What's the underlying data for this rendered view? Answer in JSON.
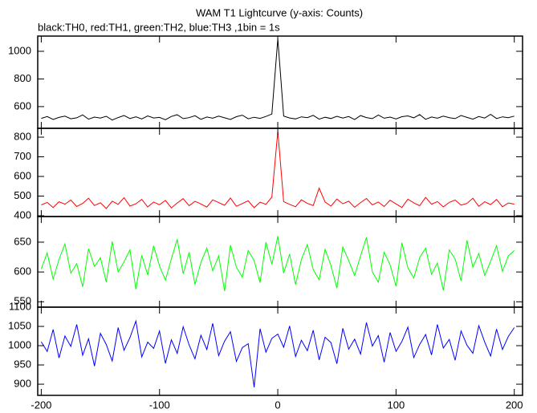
{
  "chart_data": [
    {
      "type": "line",
      "title": "WAM T1 Lightcurve (y-axis: Counts)",
      "subtitle": "black:TH0, red:TH1, green:TH2, blue:TH3 ,1bin = 1s",
      "color": "#000000",
      "x": [
        -200,
        -195,
        -190,
        -185,
        -180,
        -175,
        -170,
        -165,
        -160,
        -155,
        -150,
        -145,
        -140,
        -135,
        -130,
        -125,
        -120,
        -115,
        -110,
        -105,
        -100,
        -95,
        -90,
        -85,
        -80,
        -75,
        -70,
        -65,
        -60,
        -55,
        -50,
        -45,
        -40,
        -35,
        -30,
        -25,
        -20,
        -15,
        -10,
        -5,
        0,
        5,
        10,
        15,
        20,
        25,
        30,
        35,
        40,
        45,
        50,
        55,
        60,
        65,
        70,
        75,
        80,
        85,
        90,
        95,
        100,
        105,
        110,
        115,
        120,
        125,
        130,
        135,
        140,
        145,
        150,
        155,
        160,
        165,
        170,
        175,
        180,
        185,
        190,
        195,
        200
      ],
      "values": [
        515,
        528,
        507,
        522,
        531,
        512,
        519,
        540,
        509,
        524,
        517,
        530,
        503,
        521,
        536,
        514,
        526,
        511,
        533,
        518,
        522,
        505,
        529,
        541,
        513,
        520,
        534,
        508,
        525,
        516,
        531,
        519,
        507,
        527,
        538,
        512,
        523,
        515,
        529,
        546,
        1090,
        532,
        518,
        511,
        526,
        520,
        537,
        509,
        523,
        514,
        530,
        517,
        528,
        506,
        535,
        521,
        513,
        539,
        516,
        524,
        510,
        527,
        533,
        519,
        542,
        508,
        525,
        516,
        531,
        520,
        513,
        536,
        522,
        509,
        528,
        517,
        544,
        514,
        526,
        520,
        531
      ],
      "xlim": [
        -203,
        207
      ],
      "xticks": [
        -200,
        -100,
        0,
        100,
        200
      ],
      "ylim": [
        443,
        1110
      ],
      "yticks": [
        600,
        800,
        1000
      ]
    },
    {
      "type": "line",
      "color": "#ff0000",
      "x": [
        -200,
        -195,
        -190,
        -185,
        -180,
        -175,
        -170,
        -165,
        -160,
        -155,
        -150,
        -145,
        -140,
        -135,
        -130,
        -125,
        -120,
        -115,
        -110,
        -105,
        -100,
        -95,
        -90,
        -85,
        -80,
        -75,
        -70,
        -65,
        -60,
        -55,
        -50,
        -45,
        -40,
        -35,
        -30,
        -25,
        -20,
        -15,
        -10,
        -5,
        0,
        5,
        10,
        15,
        20,
        25,
        30,
        35,
        40,
        45,
        50,
        55,
        60,
        65,
        70,
        75,
        80,
        85,
        90,
        95,
        100,
        105,
        110,
        115,
        120,
        125,
        130,
        135,
        140,
        145,
        150,
        155,
        160,
        165,
        170,
        175,
        180,
        185,
        190,
        195,
        200
      ],
      "values": [
        455,
        468,
        442,
        471,
        459,
        480,
        447,
        463,
        489,
        452,
        466,
        437,
        474,
        458,
        492,
        449,
        461,
        483,
        445,
        470,
        456,
        478,
        440,
        465,
        487,
        451,
        473,
        460,
        444,
        481,
        467,
        453,
        490,
        448,
        462,
        476,
        441,
        469,
        458,
        495,
        830,
        472,
        458,
        446,
        481,
        463,
        452,
        540,
        470,
        449,
        485,
        461,
        474,
        443,
        467,
        488,
        455,
        470,
        447,
        479,
        460,
        442,
        484,
        466,
        451,
        493,
        459,
        472,
        445,
        468,
        480,
        454,
        463,
        489,
        448,
        471,
        457,
        483,
        446,
        465,
        459
      ],
      "xlim": [
        -203,
        207
      ],
      "xticks": [
        -200,
        -100,
        0,
        100,
        200
      ],
      "ylim": [
        396,
        845
      ],
      "yticks": [
        400,
        500,
        600,
        700,
        800
      ]
    },
    {
      "type": "line",
      "color": "#00ff00",
      "x": [
        -200,
        -195,
        -190,
        -185,
        -180,
        -175,
        -170,
        -165,
        -160,
        -155,
        -150,
        -145,
        -140,
        -135,
        -130,
        -125,
        -120,
        -115,
        -110,
        -105,
        -100,
        -95,
        -90,
        -85,
        -80,
        -75,
        -70,
        -65,
        -60,
        -55,
        -50,
        -45,
        -40,
        -35,
        -30,
        -25,
        -20,
        -15,
        -10,
        -5,
        0,
        5,
        10,
        15,
        20,
        25,
        30,
        35,
        40,
        45,
        50,
        55,
        60,
        65,
        70,
        75,
        80,
        85,
        90,
        95,
        100,
        105,
        110,
        115,
        120,
        125,
        130,
        135,
        140,
        145,
        150,
        155,
        160,
        165,
        170,
        175,
        180,
        185,
        190,
        195,
        200
      ],
      "values": [
        605,
        632,
        588,
        621,
        647,
        598,
        614,
        575,
        639,
        609,
        624,
        583,
        651,
        600,
        617,
        637,
        571,
        628,
        595,
        644,
        610,
        586,
        622,
        655,
        597,
        633,
        579,
        616,
        640,
        602,
        627,
        568,
        645,
        608,
        591,
        636,
        619,
        582,
        650,
        613,
        660,
        598,
        630,
        579,
        621,
        646,
        604,
        587,
        638,
        611,
        573,
        642,
        619,
        594,
        627,
        658,
        600,
        583,
        633,
        612,
        576,
        649,
        607,
        590,
        624,
        640,
        596,
        615,
        569,
        637,
        622,
        585,
        653,
        608,
        631,
        594,
        618,
        644,
        601,
        627,
        636
      ],
      "xlim": [
        -203,
        207
      ],
      "xticks": [
        -200,
        -100,
        0,
        100,
        200
      ],
      "ylim": [
        541,
        693
      ],
      "yticks": [
        550,
        600,
        650
      ]
    },
    {
      "type": "line",
      "color": "#0000ff",
      "x": [
        -200,
        -195,
        -190,
        -185,
        -180,
        -175,
        -170,
        -165,
        -160,
        -155,
        -150,
        -145,
        -140,
        -135,
        -130,
        -125,
        -120,
        -115,
        -110,
        -105,
        -100,
        -95,
        -90,
        -85,
        -80,
        -75,
        -70,
        -65,
        -60,
        -55,
        -50,
        -45,
        -40,
        -35,
        -30,
        -25,
        -20,
        -15,
        -10,
        -5,
        0,
        5,
        10,
        15,
        20,
        25,
        30,
        35,
        40,
        45,
        50,
        55,
        60,
        65,
        70,
        75,
        80,
        85,
        90,
        95,
        100,
        105,
        110,
        115,
        120,
        125,
        130,
        135,
        140,
        145,
        150,
        155,
        160,
        165,
        170,
        175,
        180,
        185,
        190,
        195,
        200
      ],
      "values": [
        1010,
        985,
        1042,
        968,
        1025,
        998,
        1055,
        975,
        1018,
        947,
        1032,
        1003,
        960,
        1047,
        988,
        1021,
        1064,
        971,
        1009,
        993,
        1038,
        954,
        1015,
        980,
        1049,
        1002,
        966,
        1027,
        990,
        1058,
        974,
        1012,
        1036,
        959,
        995,
        1005,
        892,
        1044,
        983,
        1019,
        1030,
        996,
        1051,
        972,
        1014,
        987,
        1040,
        963,
        1022,
        1008,
        953,
        1045,
        991,
        1017,
        978,
        1060,
        999,
        1026,
        957,
        1034,
        985,
        1011,
        1048,
        969,
        1003,
        1029,
        976,
        1055,
        994,
        1016,
        962,
        1038,
        1001,
        980,
        1052,
        1009,
        973,
        1043,
        990,
        1024,
        1047
      ],
      "xlim": [
        -203,
        207
      ],
      "xticks": [
        -200,
        -100,
        0,
        100,
        200
      ],
      "ylim": [
        871,
        1100
      ],
      "yticks": [
        900,
        950,
        1000,
        1050,
        1100
      ]
    }
  ]
}
